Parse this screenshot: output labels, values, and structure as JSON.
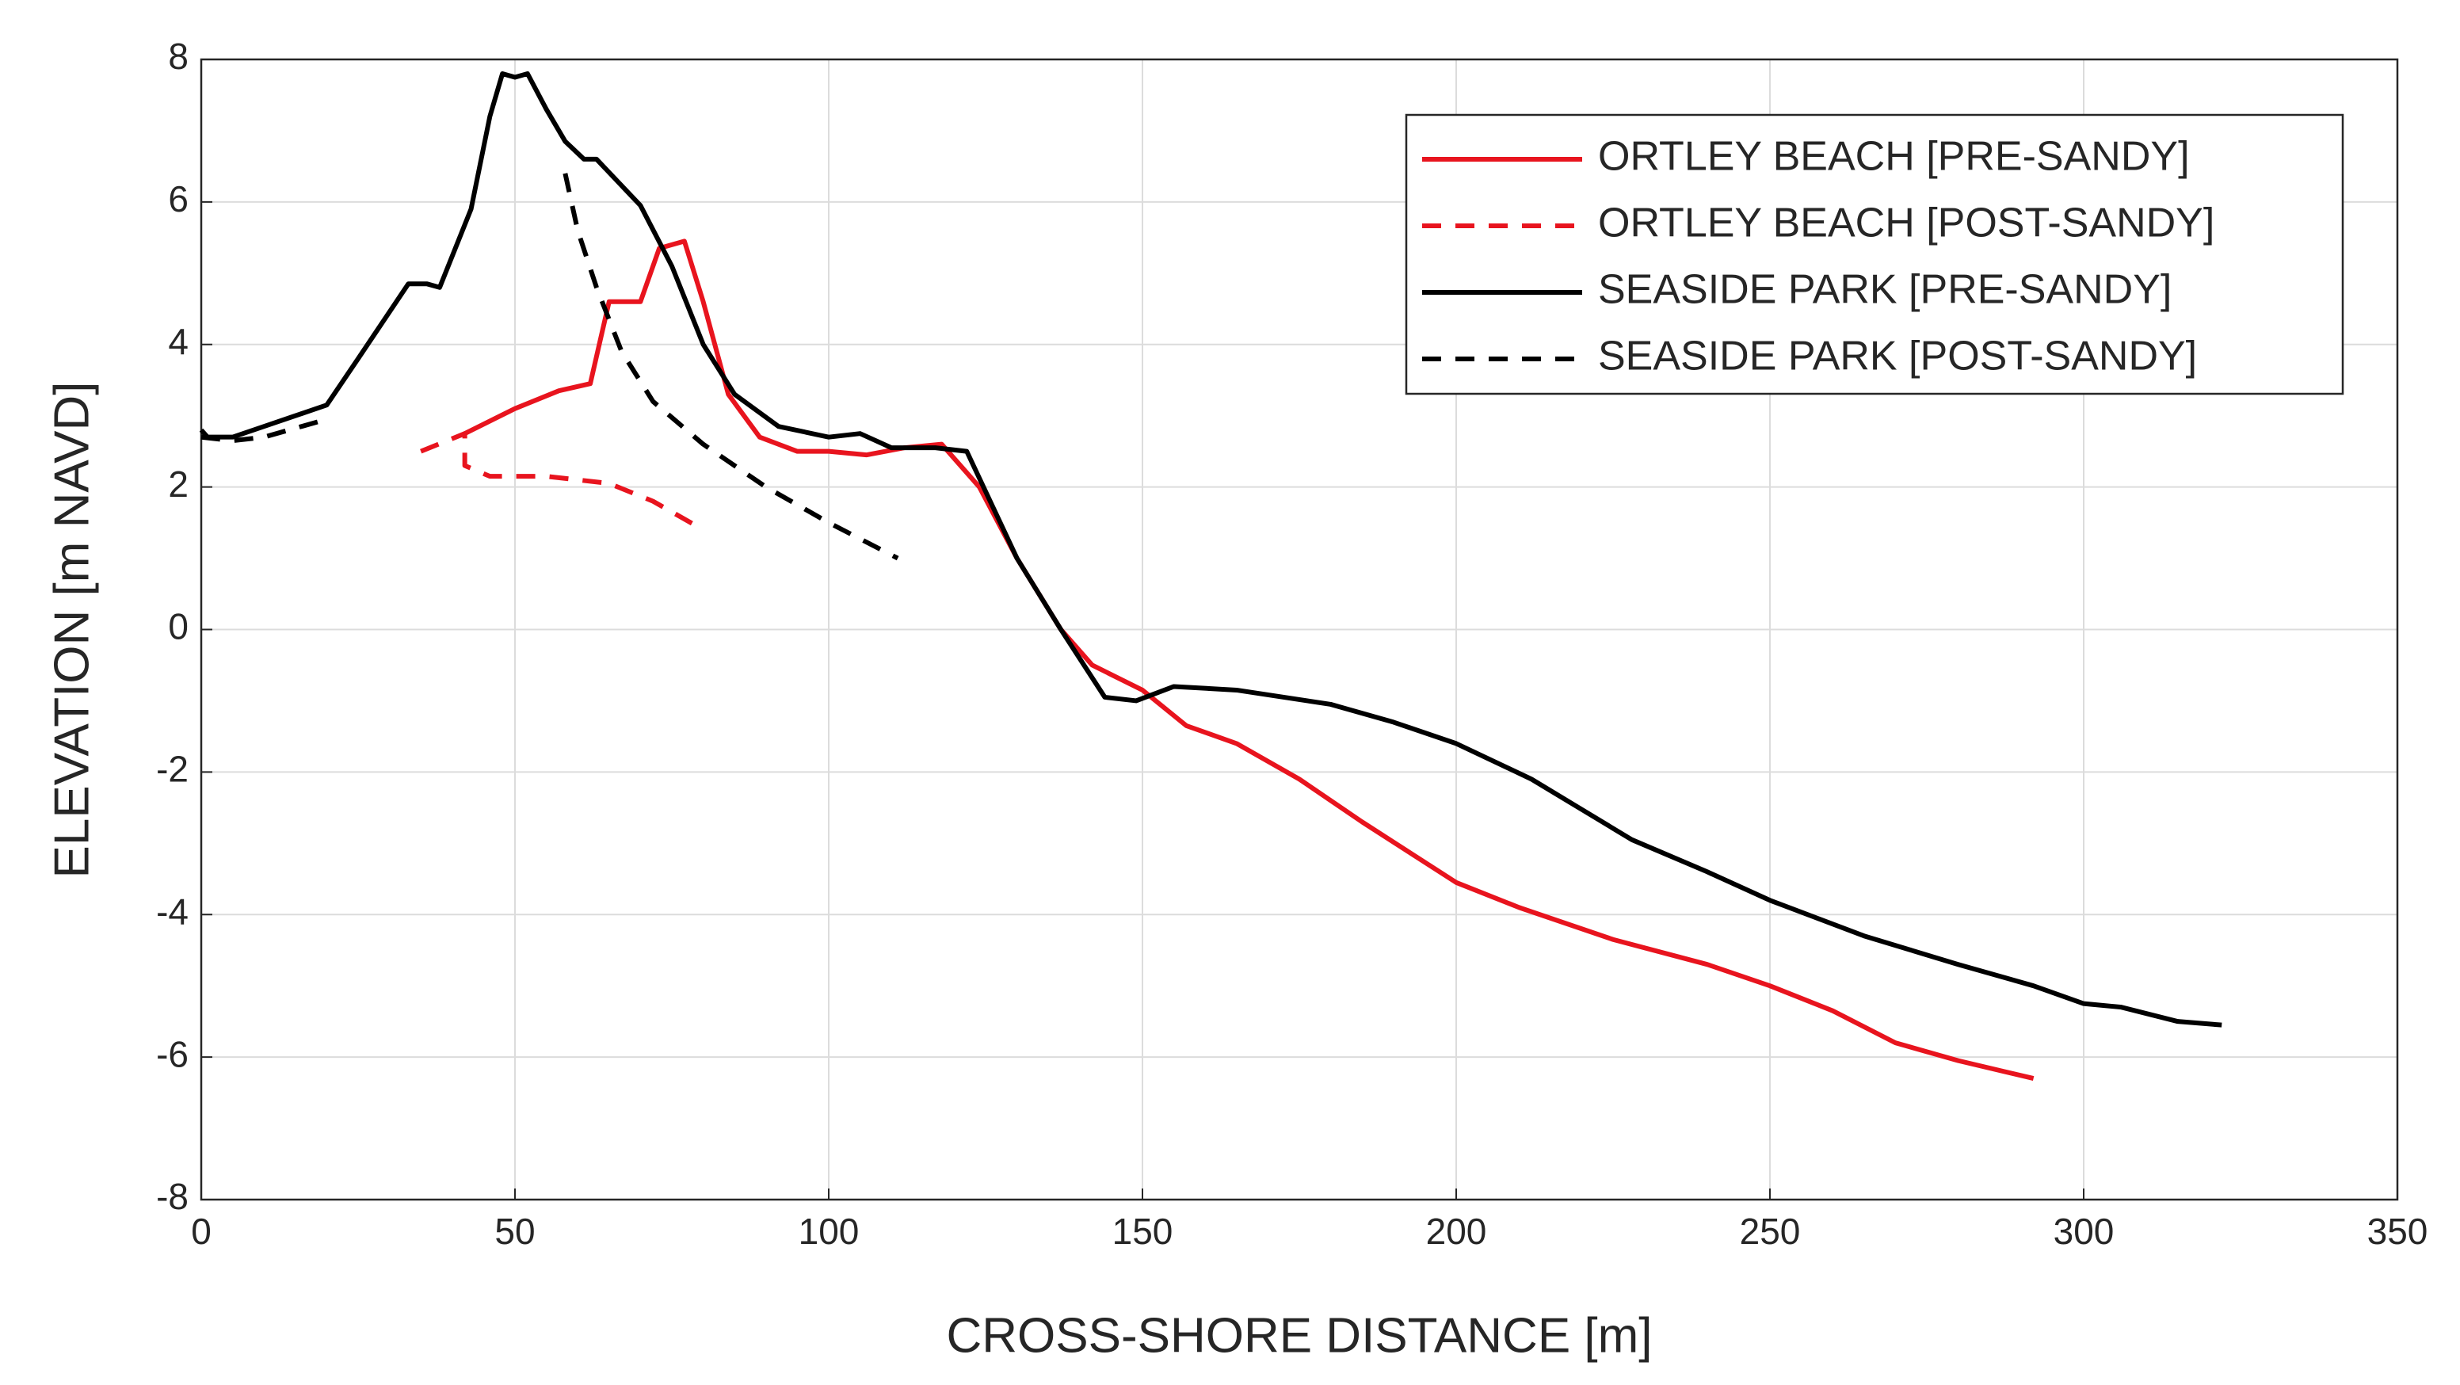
{
  "chart_data": {
    "type": "line",
    "xlabel": "CROSS-SHORE DISTANCE [m]",
    "ylabel": "ELEVATION [m NAVD]",
    "xlim": [
      0,
      350
    ],
    "xticks": [
      0,
      50,
      100,
      150,
      200,
      250,
      300,
      350
    ],
    "ylim": [
      -8,
      8
    ],
    "yticks": [
      -8,
      -6,
      -4,
      -2,
      0,
      2,
      4,
      6,
      8
    ],
    "grid": true,
    "legend": "upper-right",
    "series": [
      {
        "name": "ORTLEY BEACH [PRE-SANDY]",
        "color": "#e8141e",
        "dash": false,
        "x": [
          42,
          50,
          57,
          62,
          65,
          70,
          73,
          77,
          80,
          84,
          89,
          95,
          100,
          106,
          112,
          118,
          124,
          130,
          137,
          142,
          150,
          157,
          165,
          175,
          185,
          200,
          210,
          225,
          240,
          250,
          260,
          270,
          280,
          292
        ],
        "values": [
          2.75,
          3.1,
          3.35,
          3.45,
          4.6,
          4.6,
          5.35,
          5.45,
          4.6,
          3.3,
          2.7,
          2.5,
          2.5,
          2.45,
          2.55,
          2.6,
          2.0,
          1.0,
          0,
          -0.5,
          -0.85,
          -1.35,
          -1.6,
          -2.1,
          -2.7,
          -3.55,
          -3.9,
          -4.35,
          -4.7,
          -5.0,
          -5.35,
          -5.8,
          -6.05,
          -6.3
        ]
      },
      {
        "name": "ORTLEY BEACH [POST-SANDY]",
        "color": "#e8141e",
        "dash": true,
        "x": [
          35,
          42,
          42,
          46,
          55,
          65,
          72,
          80
        ],
        "values": [
          2.5,
          2.75,
          2.3,
          2.15,
          2.15,
          2.05,
          1.8,
          1.4
        ]
      },
      {
        "name": "SEASIDE PARK [PRE-SANDY]",
        "color": "#000000",
        "dash": false,
        "x": [
          0,
          1,
          5,
          10,
          20,
          25,
          33,
          36,
          38,
          43,
          46,
          48,
          50,
          52,
          55,
          58,
          61,
          63,
          70,
          75,
          80,
          85,
          92,
          100,
          105,
          110,
          117,
          122,
          130,
          137,
          144,
          149,
          155,
          165,
          180,
          190,
          200,
          212,
          228,
          240,
          250,
          265,
          280,
          292,
          300,
          306,
          315,
          322
        ],
        "values": [
          2.8,
          2.7,
          2.7,
          2.85,
          3.15,
          3.8,
          4.85,
          4.85,
          4.8,
          5.9,
          7.2,
          7.8,
          7.75,
          7.8,
          7.3,
          6.85,
          6.6,
          6.6,
          5.95,
          5.1,
          4.0,
          3.3,
          2.85,
          2.7,
          2.75,
          2.55,
          2.55,
          2.5,
          1.0,
          0,
          -0.95,
          -1.0,
          -0.8,
          -0.85,
          -1.05,
          -1.3,
          -1.6,
          -2.1,
          -2.95,
          -3.4,
          -3.8,
          -4.3,
          -4.7,
          -5.0,
          -5.25,
          -5.3,
          -5.5,
          -5.55
        ]
      },
      {
        "name": "SEASIDE PARK [POST-SANDY]",
        "color": "#000000",
        "dash": true,
        "x": [
          0,
          5,
          10,
          20,
          40,
          58,
          60,
          63,
          67,
          72,
          80,
          90,
          100,
          111
        ],
        "values": [
          2.7,
          2.65,
          2.7,
          2.95,
          null,
          6.4,
          5.6,
          4.8,
          3.9,
          3.2,
          2.6,
          2.0,
          1.5,
          1.0
        ]
      }
    ]
  }
}
